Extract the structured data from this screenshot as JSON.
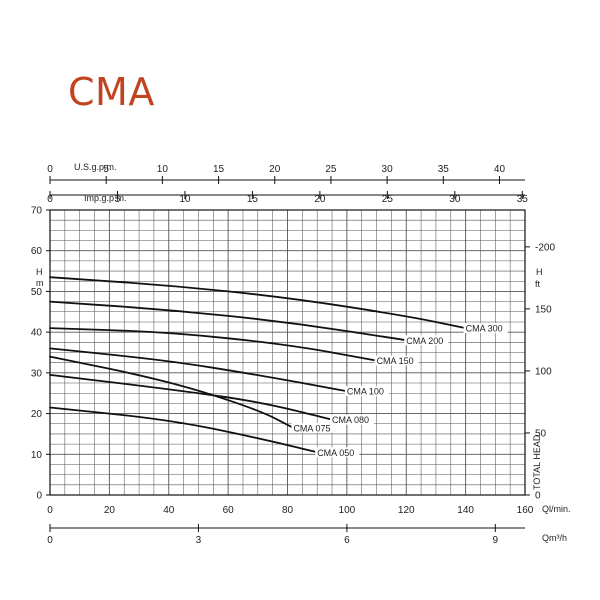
{
  "title": "CMA",
  "chart_data": {
    "type": "line",
    "title": "CMA",
    "x_primary": {
      "label": "Ql/min.",
      "range": [
        0,
        160
      ],
      "ticks": [
        0,
        20,
        40,
        60,
        80,
        100,
        120,
        140,
        160
      ]
    },
    "x_m3h": {
      "label": "Qm³/h",
      "range": [
        0,
        9.6
      ],
      "ticks": [
        0,
        3,
        6,
        9
      ],
      "tick_labels": [
        "0",
        "3",
        "6",
        "9"
      ]
    },
    "x_usgpm": {
      "label": "U.S.g.p.m.",
      "range": [
        0,
        42.27
      ],
      "ticks": [
        0,
        5,
        10,
        15,
        20,
        25,
        30,
        35,
        40
      ]
    },
    "x_impgpm": {
      "label": "Imp.g.p.m.",
      "range": [
        0,
        35.2
      ],
      "ticks": [
        0,
        5,
        10,
        15,
        20,
        25,
        30,
        35
      ]
    },
    "y_left": {
      "label": "H m",
      "range": [
        0,
        70
      ],
      "ticks": [
        0,
        10,
        20,
        30,
        40,
        50,
        60,
        70
      ]
    },
    "y_right": {
      "label": "H ft",
      "range": [
        0,
        229.7
      ],
      "ticks": [
        0,
        50,
        100,
        150,
        200
      ],
      "axis_title": "TOTAL HEAD"
    },
    "grid": true,
    "series": [
      {
        "name": "CMA 300",
        "x": [
          0,
          40,
          80,
          120,
          140
        ],
        "y": [
          53.5,
          51.5,
          48.5,
          44,
          41
        ]
      },
      {
        "name": "CMA 200",
        "x": [
          0,
          40,
          80,
          120
        ],
        "y": [
          47.5,
          45.5,
          42.5,
          38
        ]
      },
      {
        "name": "CMA 150",
        "x": [
          0,
          40,
          80,
          110
        ],
        "y": [
          41,
          40,
          37,
          33
        ]
      },
      {
        "name": "CMA 100",
        "x": [
          0,
          40,
          70,
          100
        ],
        "y": [
          36,
          33,
          29.5,
          25.5
        ]
      },
      {
        "name": "CMA 080",
        "x": [
          0,
          40,
          70,
          95
        ],
        "y": [
          29.5,
          26,
          23,
          18.5
        ]
      },
      {
        "name": "CMA 075",
        "x": [
          0,
          40,
          70,
          82
        ],
        "y": [
          34,
          28,
          21,
          16.5
        ]
      },
      {
        "name": "CMA 050",
        "x": [
          0,
          40,
          70,
          90
        ],
        "y": [
          21.5,
          18.5,
          14,
          10.5
        ]
      }
    ]
  }
}
